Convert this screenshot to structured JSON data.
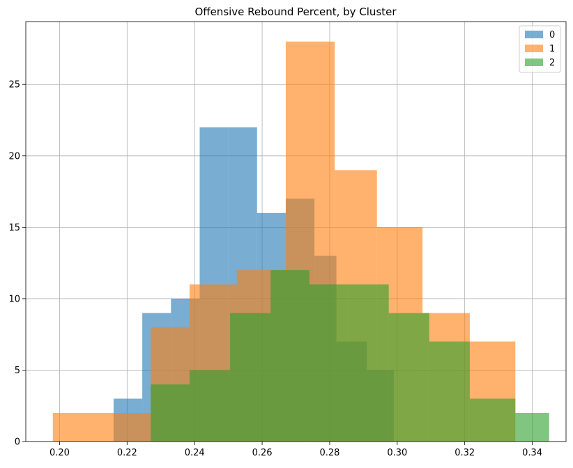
{
  "chart_data": {
    "type": "bar",
    "title": "Offensive Rebound Percent, by Cluster",
    "xlabel": "",
    "ylabel": "",
    "xlim": [
      0.19,
      0.35
    ],
    "ylim": [
      0,
      29.4
    ],
    "x_ticks": [
      "0.20",
      "0.22",
      "0.24",
      "0.26",
      "0.28",
      "0.30",
      "0.32",
      "0.34"
    ],
    "y_ticks": [
      "0",
      "5",
      "10",
      "15",
      "20",
      "25"
    ],
    "grid": true,
    "legend_position": "top-right",
    "series": [
      {
        "name": "0",
        "color": "#1f77b4",
        "bins": [
          {
            "x0": 0.216,
            "x1": 0.2245,
            "count": 3
          },
          {
            "x0": 0.2245,
            "x1": 0.233,
            "count": 9
          },
          {
            "x0": 0.233,
            "x1": 0.2415,
            "count": 10
          },
          {
            "x0": 0.2415,
            "x1": 0.25,
            "count": 22
          },
          {
            "x0": 0.25,
            "x1": 0.2585,
            "count": 22
          },
          {
            "x0": 0.2585,
            "x1": 0.267,
            "count": 16
          },
          {
            "x0": 0.267,
            "x1": 0.2755,
            "count": 17
          },
          {
            "x0": 0.2755,
            "x1": 0.282,
            "count": 13
          },
          {
            "x0": 0.282,
            "x1": 0.291,
            "count": 7
          },
          {
            "x0": 0.291,
            "x1": 0.299,
            "count": 5
          }
        ]
      },
      {
        "name": "1",
        "color": "#ff7f0e",
        "bins": [
          {
            "x0": 0.198,
            "x1": 0.2125,
            "count": 2
          },
          {
            "x0": 0.2125,
            "x1": 0.227,
            "count": 2
          },
          {
            "x0": 0.227,
            "x1": 0.2385,
            "count": 8
          },
          {
            "x0": 0.2385,
            "x1": 0.2525,
            "count": 11
          },
          {
            "x0": 0.2525,
            "x1": 0.267,
            "count": 12
          },
          {
            "x0": 0.267,
            "x1": 0.2815,
            "count": 28
          },
          {
            "x0": 0.2815,
            "x1": 0.294,
            "count": 19
          },
          {
            "x0": 0.294,
            "x1": 0.3075,
            "count": 15
          },
          {
            "x0": 0.3075,
            "x1": 0.3215,
            "count": 9
          },
          {
            "x0": 0.3215,
            "x1": 0.335,
            "count": 7
          }
        ]
      },
      {
        "name": "2",
        "color": "#2ca02c",
        "bins": [
          {
            "x0": 0.227,
            "x1": 0.2385,
            "count": 4
          },
          {
            "x0": 0.2385,
            "x1": 0.2505,
            "count": 5
          },
          {
            "x0": 0.2505,
            "x1": 0.2625,
            "count": 9
          },
          {
            "x0": 0.2625,
            "x1": 0.274,
            "count": 12
          },
          {
            "x0": 0.274,
            "x1": 0.2855,
            "count": 11
          },
          {
            "x0": 0.2855,
            "x1": 0.2975,
            "count": 11
          },
          {
            "x0": 0.2975,
            "x1": 0.3095,
            "count": 9
          },
          {
            "x0": 0.3095,
            "x1": 0.3215,
            "count": 7
          },
          {
            "x0": 0.3215,
            "x1": 0.335,
            "count": 3
          },
          {
            "x0": 0.335,
            "x1": 0.345,
            "count": 2
          }
        ]
      }
    ]
  }
}
